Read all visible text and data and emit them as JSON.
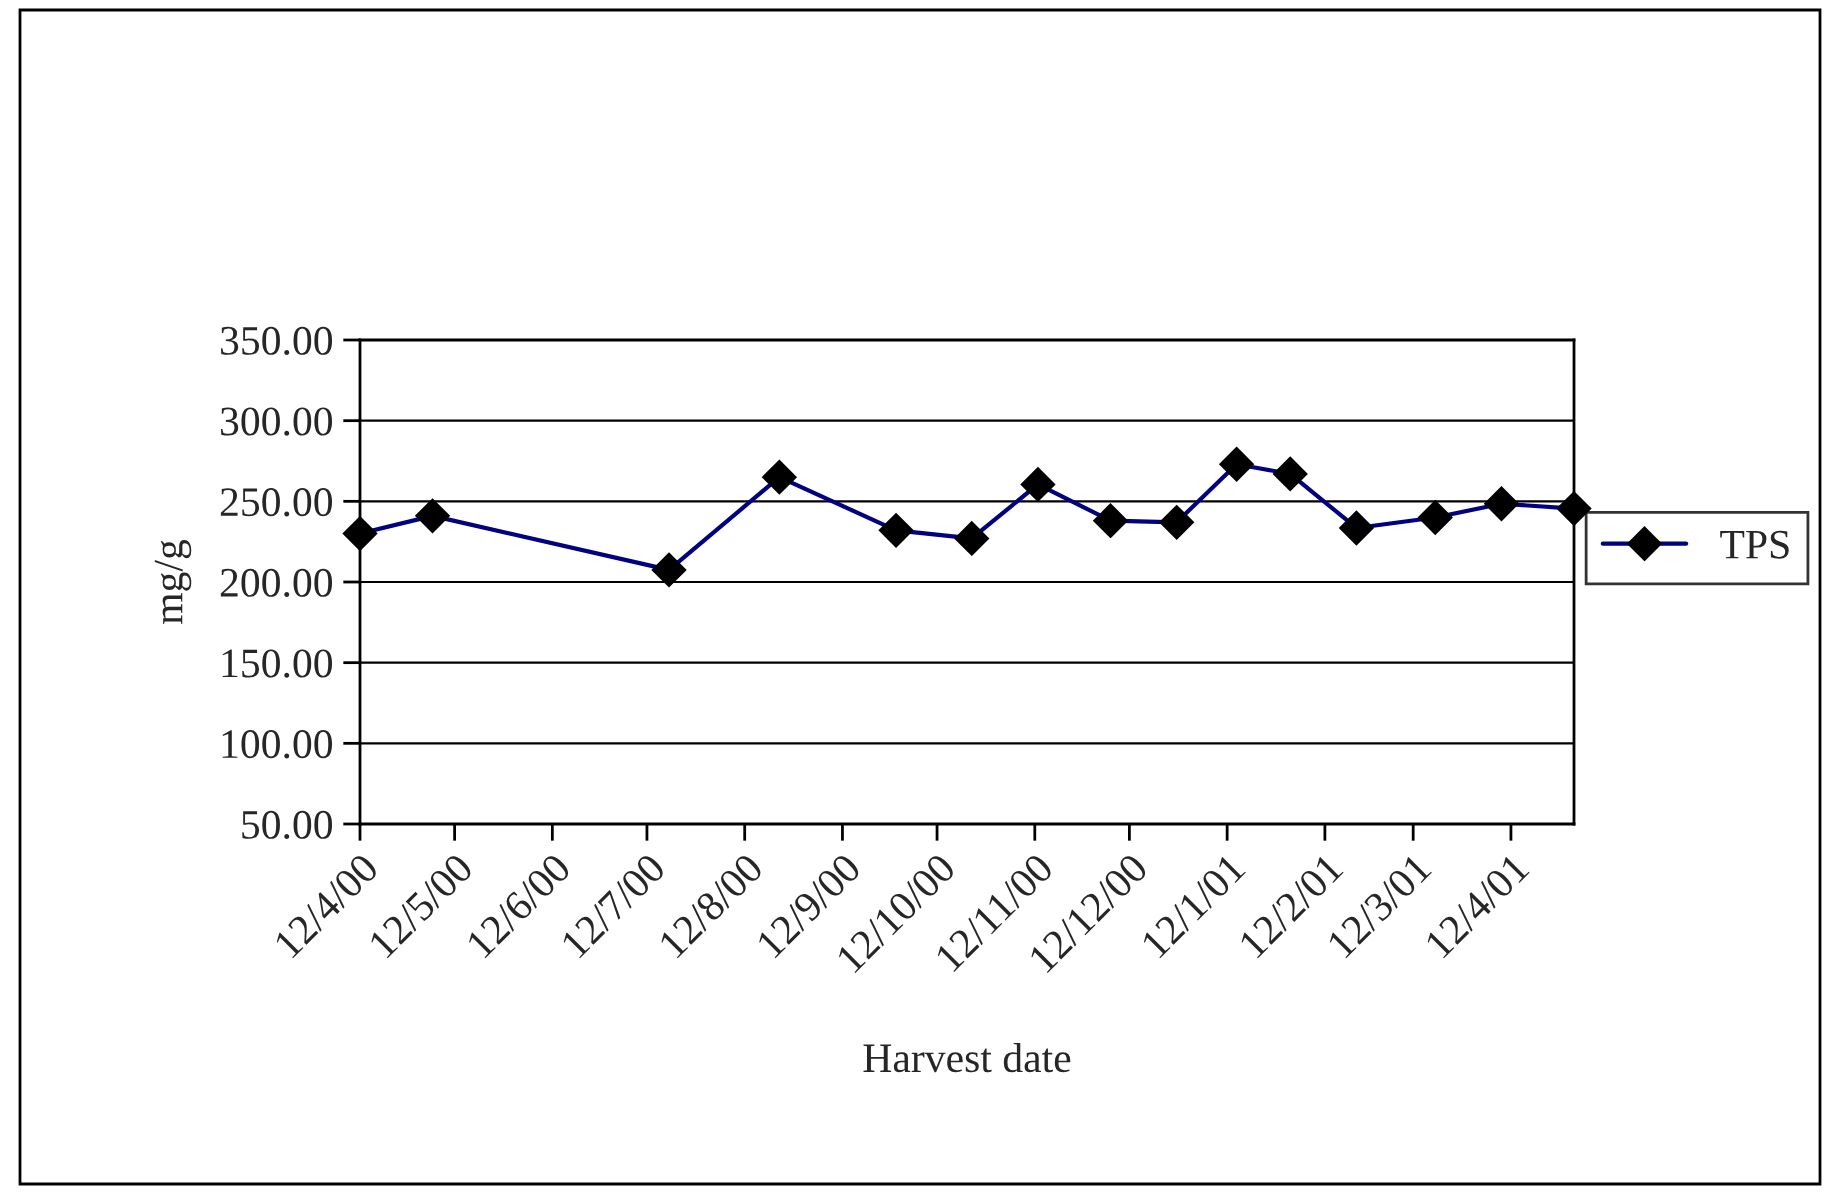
{
  "chart_data": {
    "type": "line",
    "xlabel": "Harvest date",
    "ylabel": "mg/g",
    "x": [
      "2000-04-12",
      "2000-05-05",
      "2000-07-19",
      "2000-08-23",
      "2000-09-29",
      "2000-10-23",
      "2000-11-13",
      "2000-12-06",
      "2000-12-27",
      "2001-01-15",
      "2001-02-01",
      "2001-02-22",
      "2001-03-19",
      "2001-04-09",
      "2001-05-02"
    ],
    "series": [
      {
        "name": "TPS",
        "color": "#000080",
        "values": [
          230,
          241,
          207.5,
          265,
          232,
          227,
          260.5,
          238,
          237,
          273,
          267,
          233.5,
          240,
          248.5,
          245.5
        ]
      }
    ],
    "xlim": [
      "2000-04-12",
      "2001-05-02"
    ],
    "xticks": [
      {
        "value": "2000-04-12",
        "label": "12/4/00"
      },
      {
        "value": "2000-05-12",
        "label": "12/5/00"
      },
      {
        "value": "2000-06-12",
        "label": "12/6/00"
      },
      {
        "value": "2000-07-12",
        "label": "12/7/00"
      },
      {
        "value": "2000-08-12",
        "label": "12/8/00"
      },
      {
        "value": "2000-09-12",
        "label": "12/9/00"
      },
      {
        "value": "2000-10-12",
        "label": "12/10/00"
      },
      {
        "value": "2000-11-12",
        "label": "12/11/00"
      },
      {
        "value": "2000-12-12",
        "label": "12/12/00"
      },
      {
        "value": "2001-01-12",
        "label": "12/1/01"
      },
      {
        "value": "2001-02-12",
        "label": "12/2/01"
      },
      {
        "value": "2001-03-12",
        "label": "12/3/01"
      },
      {
        "value": "2001-04-12",
        "label": "12/4/01"
      }
    ],
    "ylim": [
      50,
      350
    ],
    "yticks": [
      {
        "value": 50,
        "label": "50.00"
      },
      {
        "value": 100,
        "label": "100.00"
      },
      {
        "value": 150,
        "label": "150.00"
      },
      {
        "value": 200,
        "label": "200.00"
      },
      {
        "value": 250,
        "label": "250.00"
      },
      {
        "value": 300,
        "label": "300.00"
      },
      {
        "value": 350,
        "label": "350.00"
      }
    ],
    "grid": "y",
    "legend": "right",
    "marker": "diamond",
    "line_style": "solid"
  }
}
